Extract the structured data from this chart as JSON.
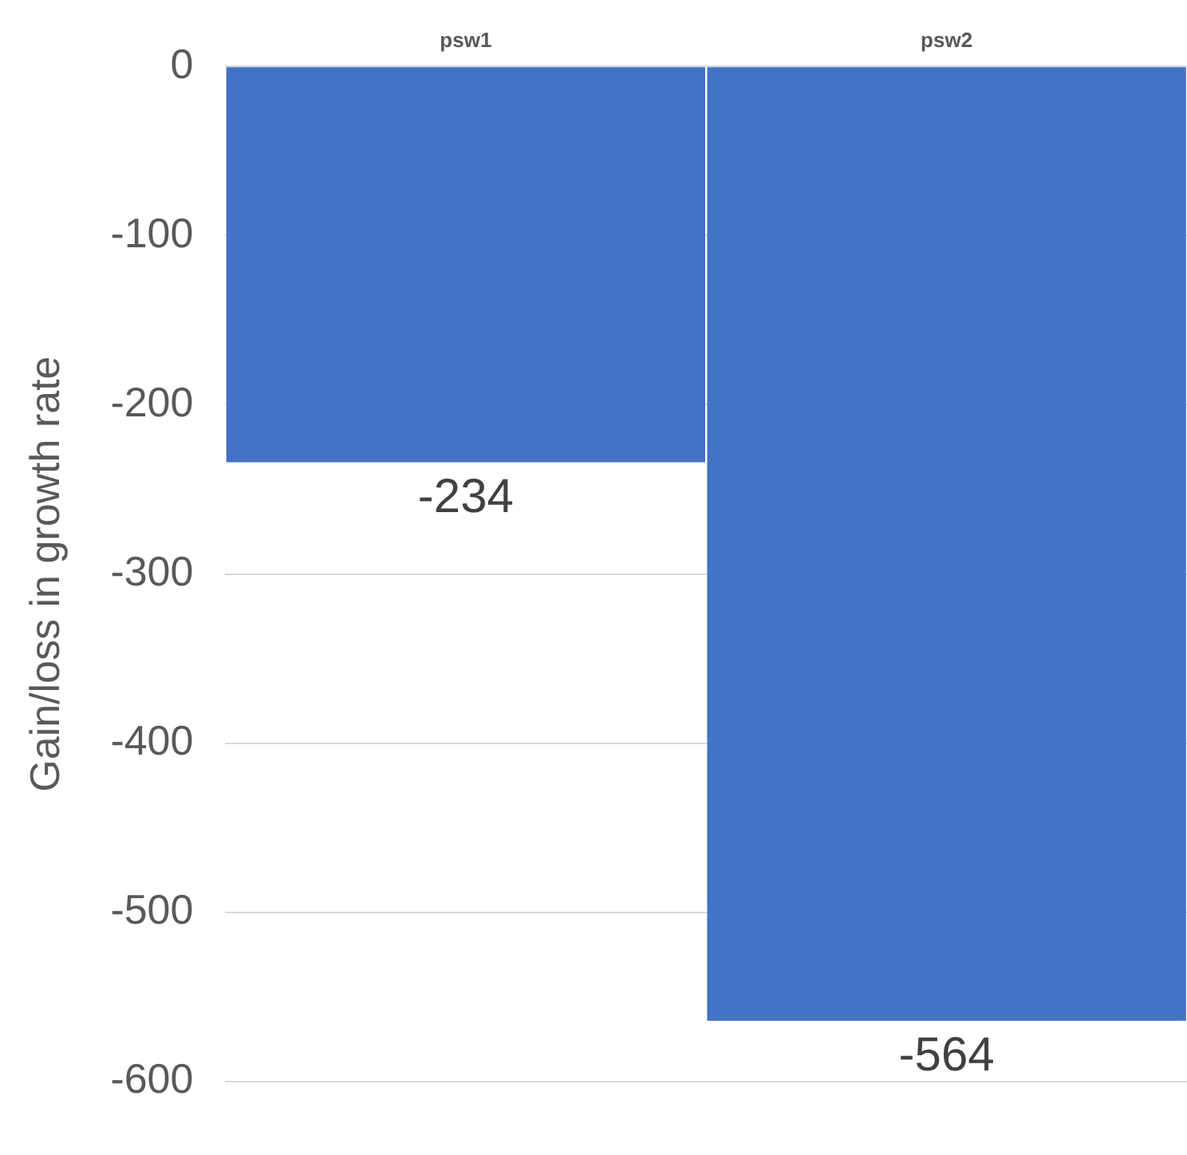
{
  "chart_data": {
    "type": "bar",
    "ylabel": "Gain/loss in growth rate",
    "categories": [
      "psw1",
      "psw2"
    ],
    "values": [
      -234,
      -564
    ],
    "color": "#4472c4",
    "ylim": [
      -600,
      0
    ],
    "yticks": [
      -600,
      -500,
      -400,
      -300,
      -200,
      -100,
      0
    ],
    "grid": "y",
    "data_labels": true
  }
}
